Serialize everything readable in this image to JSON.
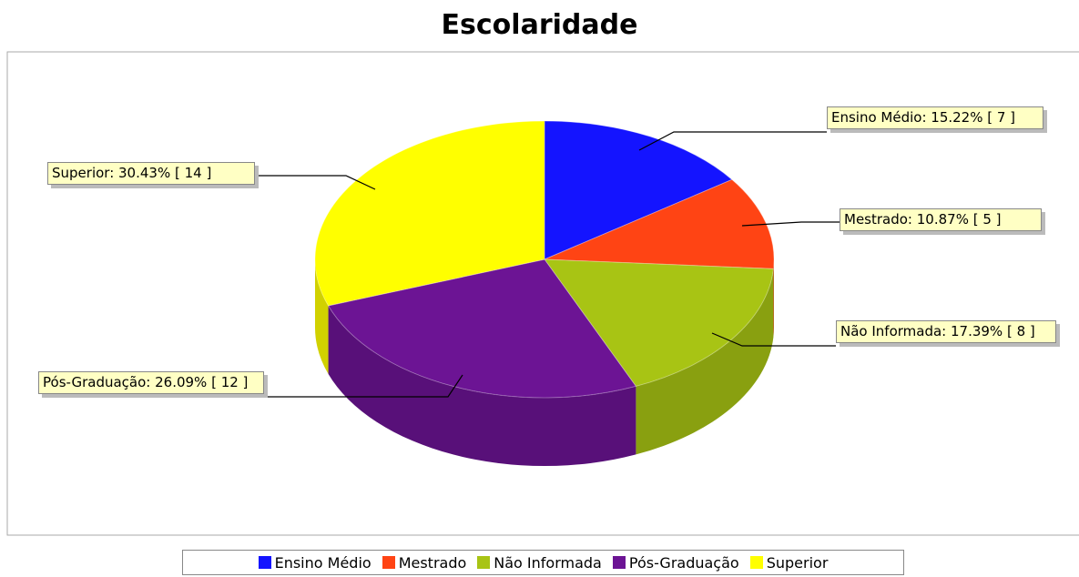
{
  "chart_data": {
    "type": "pie3d",
    "title": "Escolaridade",
    "categories": [
      "Ensino Médio",
      "Mestrado",
      "Não Informada",
      "Pós-Graduação",
      "Superior"
    ],
    "values": [
      7,
      5,
      8,
      12,
      14
    ],
    "value_labels": [
      "Ensino Médio: 15.22% [ 7 ]",
      "Mestrado: 10.87% [ 5 ]",
      "Não Informada: 17.39% [ 8 ]",
      "Pós-Graduação: 26.09% [ 12 ]",
      "Superior: 30.43% [ 14 ]"
    ],
    "colors": [
      "#1414ff",
      "#ff4414",
      "#a8c414",
      "#6c1494",
      "#ffff00"
    ],
    "legend": "bottom"
  }
}
